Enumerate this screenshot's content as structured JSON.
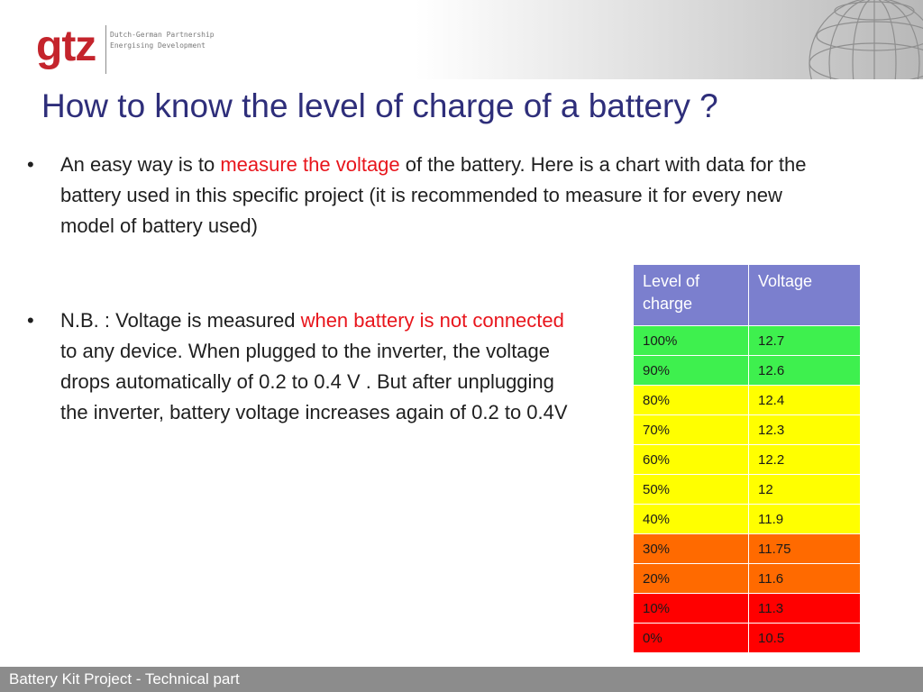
{
  "header": {
    "logo_text": "gtz",
    "tagline_line1": "Dutch-German Partnership",
    "tagline_line2": "Energising Development"
  },
  "slide": {
    "title": "How to know the level of charge of a battery ?",
    "bullet_char": "•",
    "bullet1": {
      "before": " An easy way is to ",
      "highlight": "measure the voltage",
      "after": " of the battery. Here is a chart with data for the battery used in this specific project (it is recommended to measure it for every new model of battery used)"
    },
    "bullet2": {
      "before": " N.B. : Voltage is measured ",
      "highlight": "when battery is not connected",
      "after": " to any device. When plugged to the inverter, the voltage drops automatically of 0.2 to 0.4 V . But after unplugging the inverter, battery voltage increases again of 0.2 to 0.4V"
    }
  },
  "table": {
    "headers": {
      "level": "Level of charge",
      "voltage": "Voltage"
    },
    "rows": [
      {
        "level": "100%",
        "voltage": "12.7",
        "color": "#3ef04e"
      },
      {
        "level": "90%",
        "voltage": "12.6",
        "color": "#3ef04e"
      },
      {
        "level": "80%",
        "voltage": "12.4",
        "color": "#ffff00"
      },
      {
        "level": "70%",
        "voltage": "12.3",
        "color": "#ffff00"
      },
      {
        "level": "60%",
        "voltage": "12.2",
        "color": "#ffff00"
      },
      {
        "level": "50%",
        "voltage": "12",
        "color": "#ffff00"
      },
      {
        "level": "40%",
        "voltage": "11.9",
        "color": "#ffff00"
      },
      {
        "level": "30%",
        "voltage": "11.75",
        "color": "#ff6a00"
      },
      {
        "level": "20%",
        "voltage": "11.6",
        "color": "#ff6a00"
      },
      {
        "level": "10%",
        "voltage": "11.3",
        "color": "#ff0000"
      },
      {
        "level": "0%",
        "voltage": "10.5",
        "color": "#ff0000"
      }
    ]
  },
  "footer": {
    "text": "Battery Kit Project - Technical part"
  },
  "colors": {
    "title": "#2e2e7a",
    "highlight": "#e8151c",
    "logo": "#c4242c",
    "table_header": "#7b7fce",
    "footer_bar": "#8c8c8c"
  }
}
